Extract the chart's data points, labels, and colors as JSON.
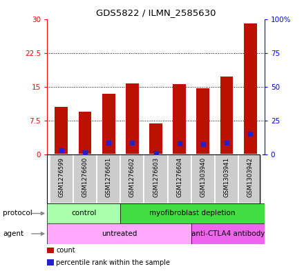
{
  "title": "GDS5822 / ILMN_2585630",
  "samples": [
    "GSM1276599",
    "GSM1276600",
    "GSM1276601",
    "GSM1276602",
    "GSM1276603",
    "GSM1276604",
    "GSM1303940",
    "GSM1303941",
    "GSM1303942"
  ],
  "counts": [
    10.5,
    9.5,
    13.5,
    15.7,
    6.8,
    15.5,
    14.7,
    17.2,
    29.0
  ],
  "percentile_ranks": [
    3.0,
    1.3,
    8.5,
    8.8,
    0.9,
    8.0,
    7.8,
    8.5,
    15.2
  ],
  "bar_color": "#BB1100",
  "dot_color": "#2222CC",
  "ylim_left": [
    0,
    30
  ],
  "ylim_right": [
    0,
    100
  ],
  "yticks_left": [
    0,
    7.5,
    15,
    22.5,
    30
  ],
  "ytick_labels_left": [
    "0",
    "7.5",
    "15",
    "22.5",
    "30"
  ],
  "yticks_right": [
    0,
    25,
    50,
    75,
    100
  ],
  "ytick_labels_right": [
    "0",
    "25",
    "50",
    "75",
    "100%"
  ],
  "protocol_groups": [
    {
      "label": "control",
      "start": 0,
      "end": 3,
      "color": "#AAFFAA"
    },
    {
      "label": "myofibroblast depletion",
      "start": 3,
      "end": 9,
      "color": "#44DD44"
    }
  ],
  "agent_groups": [
    {
      "label": "untreated",
      "start": 0,
      "end": 6,
      "color": "#FFAAFF"
    },
    {
      "label": "anti-CTLA4 antibody",
      "start": 6,
      "end": 9,
      "color": "#EE66EE"
    }
  ],
  "legend_items": [
    {
      "color": "#BB1100",
      "label": "count"
    },
    {
      "color": "#2222CC",
      "label": "percentile rank within the sample"
    }
  ],
  "bar_width": 0.55,
  "grid_color": "black",
  "grid_linestyle": ":",
  "background_plot": "white",
  "label_bg": "#CCCCCC"
}
